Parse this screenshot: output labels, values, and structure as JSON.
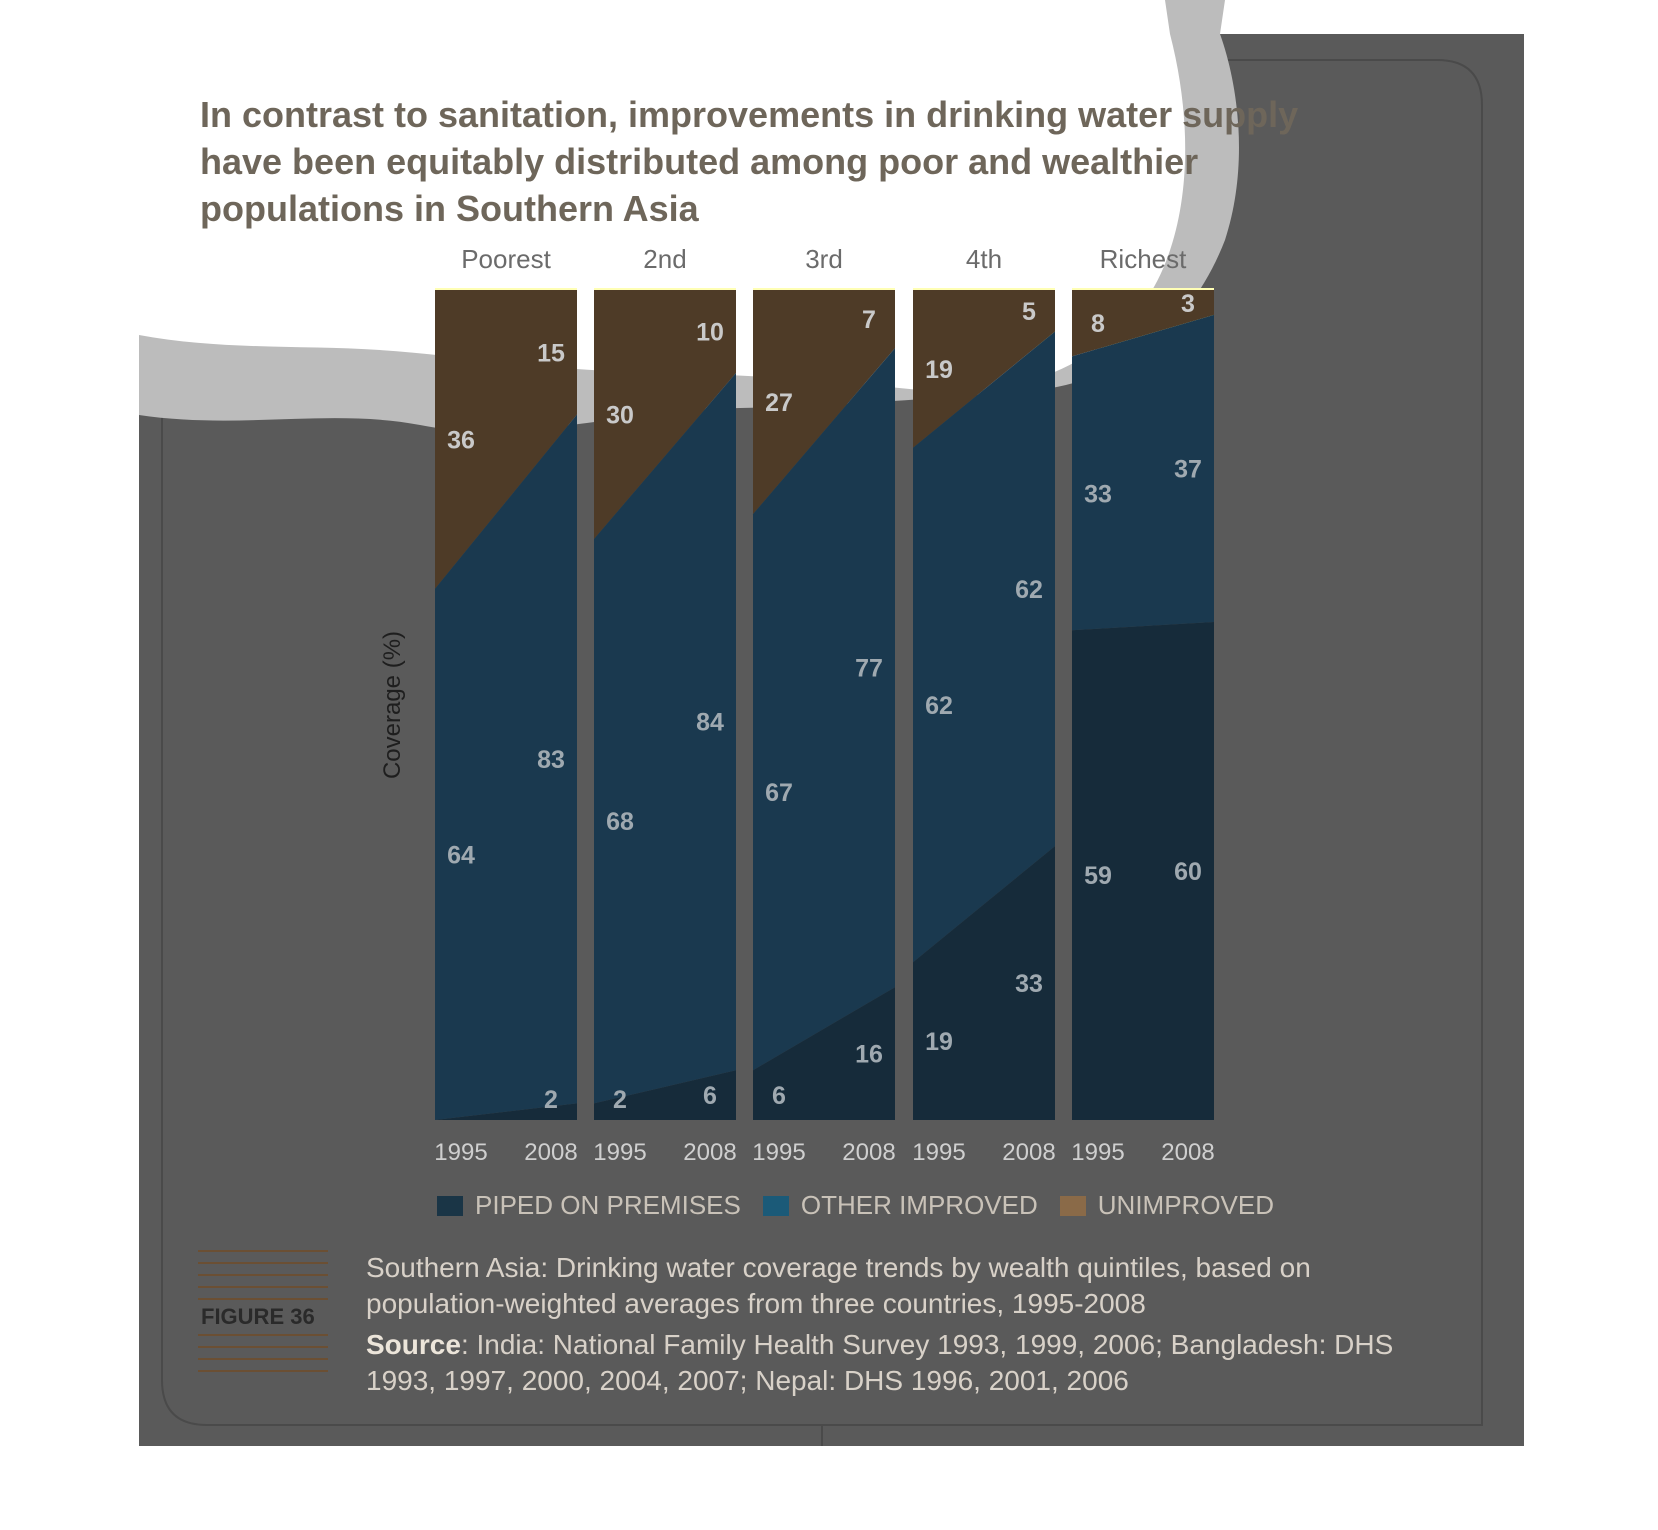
{
  "title": {
    "line1": "In contrast to sanitation, improvements in drinking water supply",
    "line2": "have been equitably distributed among poor and wealthier",
    "line3": "populations in Southern Asia"
  },
  "colors": {
    "piped": "#162b3a",
    "other_improved": "#1a394f",
    "other_improved_bright": "#2b7aa0",
    "unimproved": "#a67f52",
    "unimproved_dark": "#4e3b27",
    "top_band": "#ffffb5",
    "panel_background": "#5a5a5a",
    "label_text": "#9fa9b0"
  },
  "chart_data": {
    "type": "area",
    "ylabel": "Coverage (%)",
    "ylim": [
      0,
      100
    ],
    "groups": [
      "Poorest",
      "2nd",
      "3rd",
      "4th",
      "Richest"
    ],
    "x": [
      "1995",
      "2008"
    ],
    "series": [
      {
        "name": "PIPED ON PREMISES",
        "values": [
          [
            0,
            2
          ],
          [
            2,
            6
          ],
          [
            6,
            16
          ],
          [
            19,
            33
          ],
          [
            59,
            60
          ]
        ]
      },
      {
        "name": "OTHER IMPROVED",
        "values": [
          [
            64,
            83
          ],
          [
            68,
            84
          ],
          [
            67,
            77
          ],
          [
            62,
            62
          ],
          [
            33,
            37
          ]
        ]
      },
      {
        "name": "UNIMPROVED",
        "values": [
          [
            36,
            15
          ],
          [
            30,
            10
          ],
          [
            27,
            7
          ],
          [
            19,
            5
          ],
          [
            8,
            3
          ]
        ]
      }
    ],
    "labels": {
      "piped": [
        [
          "",
          "2"
        ],
        [
          "2",
          "6"
        ],
        [
          "6",
          "16"
        ],
        [
          "19",
          "33"
        ],
        [
          "59",
          "60"
        ]
      ],
      "other_improved": [
        [
          "64",
          "83"
        ],
        [
          "68",
          "84"
        ],
        [
          "67",
          "77"
        ],
        [
          "62",
          "62"
        ],
        [
          "33",
          "37"
        ]
      ],
      "unimproved": [
        [
          "36",
          "15"
        ],
        [
          "30",
          "10"
        ],
        [
          "27",
          "7"
        ],
        [
          "19",
          "5"
        ],
        [
          "8",
          "3"
        ]
      ]
    },
    "legend": [
      "PIPED ON PREMISES",
      "OTHER IMPROVED",
      "UNIMPROVED"
    ],
    "legend_position": "bottom"
  },
  "caption": "Southern Asia: Drinking water coverage trends by wealth quintiles, based on population-weighted averages from three countries, 1995-2008",
  "source": {
    "label": "Source",
    "text": ": India: National Family Health Survey 1993, 1999, 2006; Bangladesh: DHS 1993, 1997, 2000, 2004, 2007; Nepal: DHS 1996, 2001, 2006"
  },
  "figure_label": "FIGURE 36"
}
